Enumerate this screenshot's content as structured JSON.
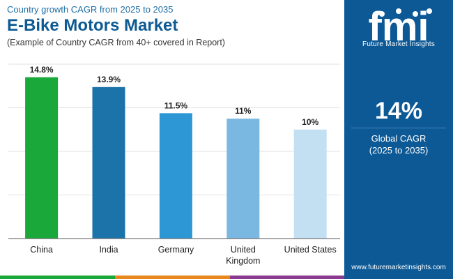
{
  "header": {
    "subtitle": "Country growth CAGR from 2025 to 2035",
    "title": "E-Bike Motors Market",
    "example": "(Example of Country CAGR from 40+ covered in Report)"
  },
  "chart_data": {
    "type": "bar",
    "title": "E-Bike Motors Market",
    "categories": [
      "China",
      "India",
      "Germany",
      "United Kingdom",
      "United States"
    ],
    "category_lines": [
      [
        "China"
      ],
      [
        "India"
      ],
      [
        "Germany"
      ],
      [
        "United",
        "Kingdom"
      ],
      [
        "United States"
      ]
    ],
    "values": [
      14.8,
      13.9,
      11.5,
      11,
      10
    ],
    "value_labels": [
      "14.8%",
      "13.9%",
      "11.5%",
      "11%",
      "10%"
    ],
    "bar_colors": [
      "#1aa83a",
      "#1b73a9",
      "#2d97d6",
      "#7ab8e2",
      "#c3e0f3"
    ],
    "ylim": [
      0,
      16
    ],
    "gridlines": [
      0,
      4,
      8,
      12,
      16
    ],
    "xlabel": "",
    "ylabel": ""
  },
  "panel": {
    "logo_letters": "fmi",
    "logo_name": "Future Market Insights",
    "stat_value": "14%",
    "stat_label_1": "Global CAGR",
    "stat_label_2": "(2025 to 2035)",
    "website": "www.futuremarketinsights.com"
  },
  "colors": {
    "brand_blue": "#0c5996",
    "bottom_bar": [
      "#1aa83a",
      "#e8871e",
      "#8a3b8f",
      "#0c5996"
    ]
  }
}
